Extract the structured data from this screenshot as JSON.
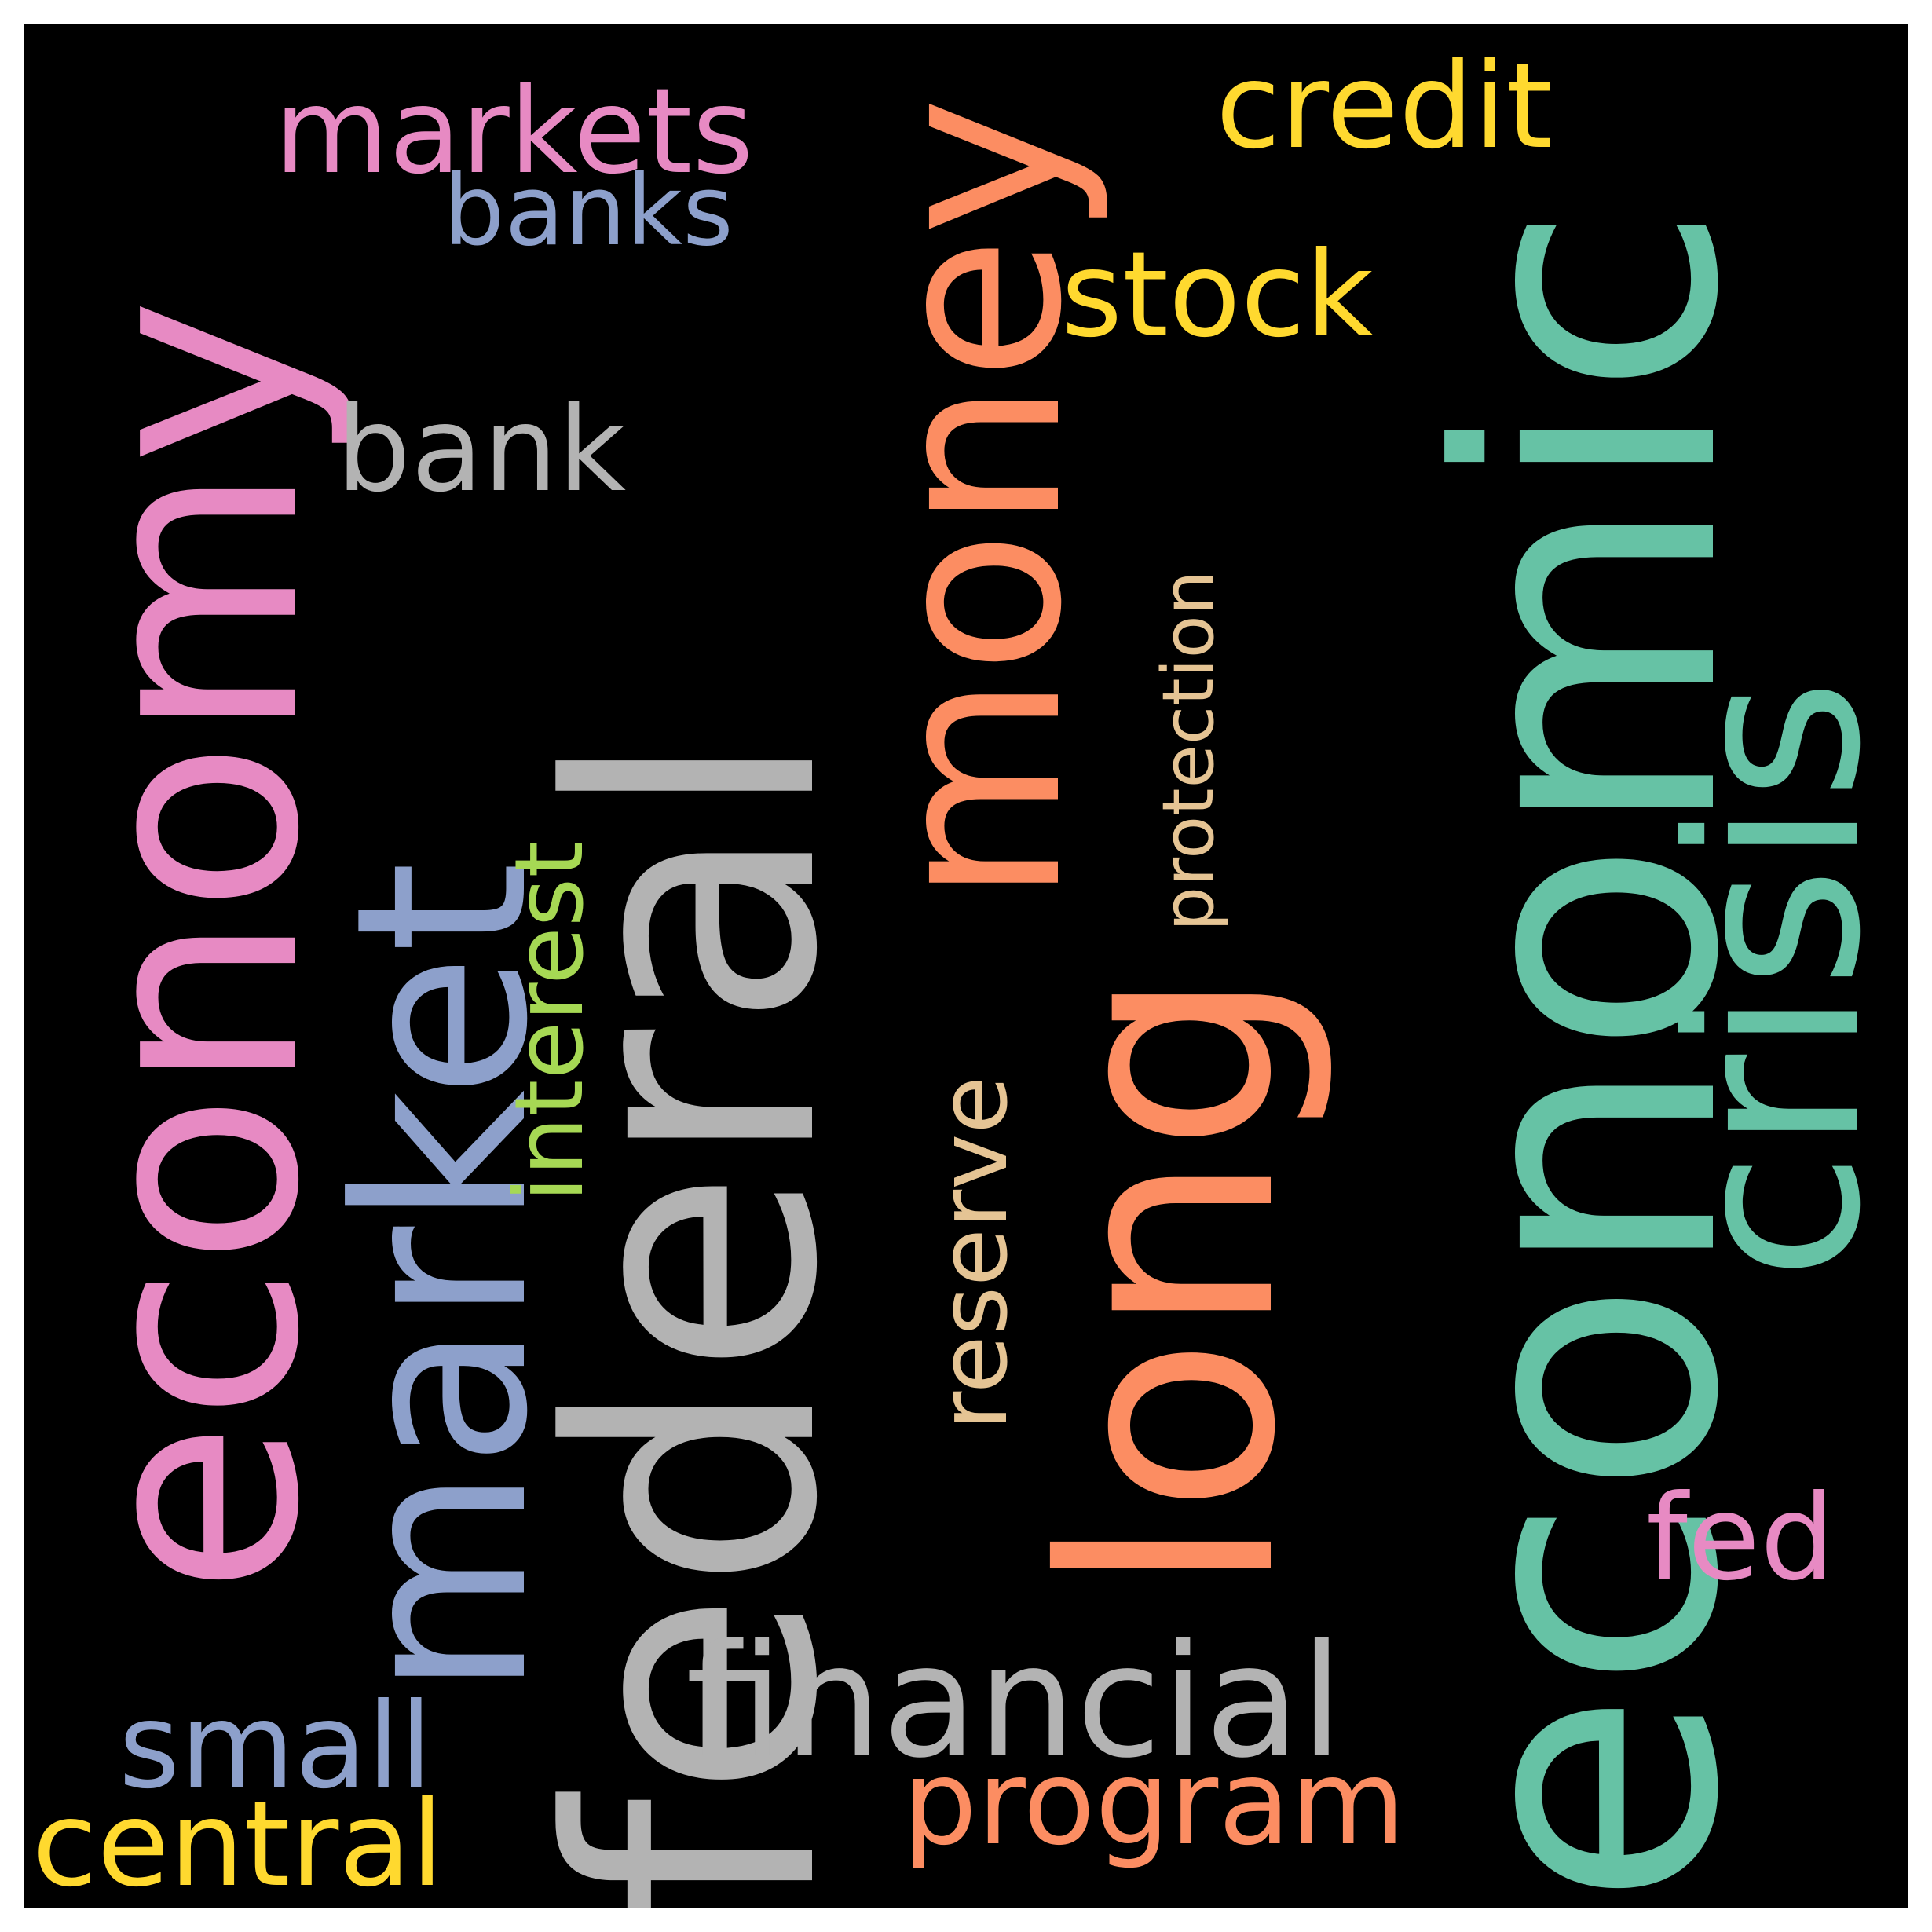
{
  "words": [
    {
      "text": "federal",
      "color": "#b3b3b3",
      "orientation": "vertical"
    },
    {
      "text": "economic",
      "color": "#66c2a5",
      "orientation": "vertical"
    },
    {
      "text": "economy",
      "color": "#e78ac3",
      "orientation": "vertical"
    },
    {
      "text": "long",
      "color": "#fc8d62",
      "orientation": "vertical"
    },
    {
      "text": "market",
      "color": "#8da0cb",
      "orientation": "vertical"
    },
    {
      "text": "money",
      "color": "#fc8d62",
      "orientation": "vertical"
    },
    {
      "text": "crisis",
      "color": "#66c2a5",
      "orientation": "vertical"
    },
    {
      "text": "financial",
      "color": "#b3b3b3",
      "orientation": "horizontal"
    },
    {
      "text": "markets",
      "color": "#e78ac3",
      "orientation": "horizontal"
    },
    {
      "text": "credit",
      "color": "#ffd92f",
      "orientation": "horizontal"
    },
    {
      "text": "stock",
      "color": "#ffd92f",
      "orientation": "horizontal"
    },
    {
      "text": "bank",
      "color": "#b3b3b3",
      "orientation": "horizontal"
    },
    {
      "text": "small",
      "color": "#8da0cb",
      "orientation": "horizontal"
    },
    {
      "text": "central",
      "color": "#ffd92f",
      "orientation": "horizontal"
    },
    {
      "text": "program",
      "color": "#fc8d62",
      "orientation": "horizontal"
    },
    {
      "text": "fed",
      "color": "#e78ac3",
      "orientation": "horizontal"
    },
    {
      "text": "banks",
      "color": "#8da0cb",
      "orientation": "horizontal"
    },
    {
      "text": "interest",
      "color": "#a6d854",
      "orientation": "vertical"
    },
    {
      "text": "reserve",
      "color": "#e5c494",
      "orientation": "vertical"
    },
    {
      "text": "protection",
      "color": "#e5c494",
      "orientation": "vertical"
    }
  ],
  "background_color": "#000000"
}
